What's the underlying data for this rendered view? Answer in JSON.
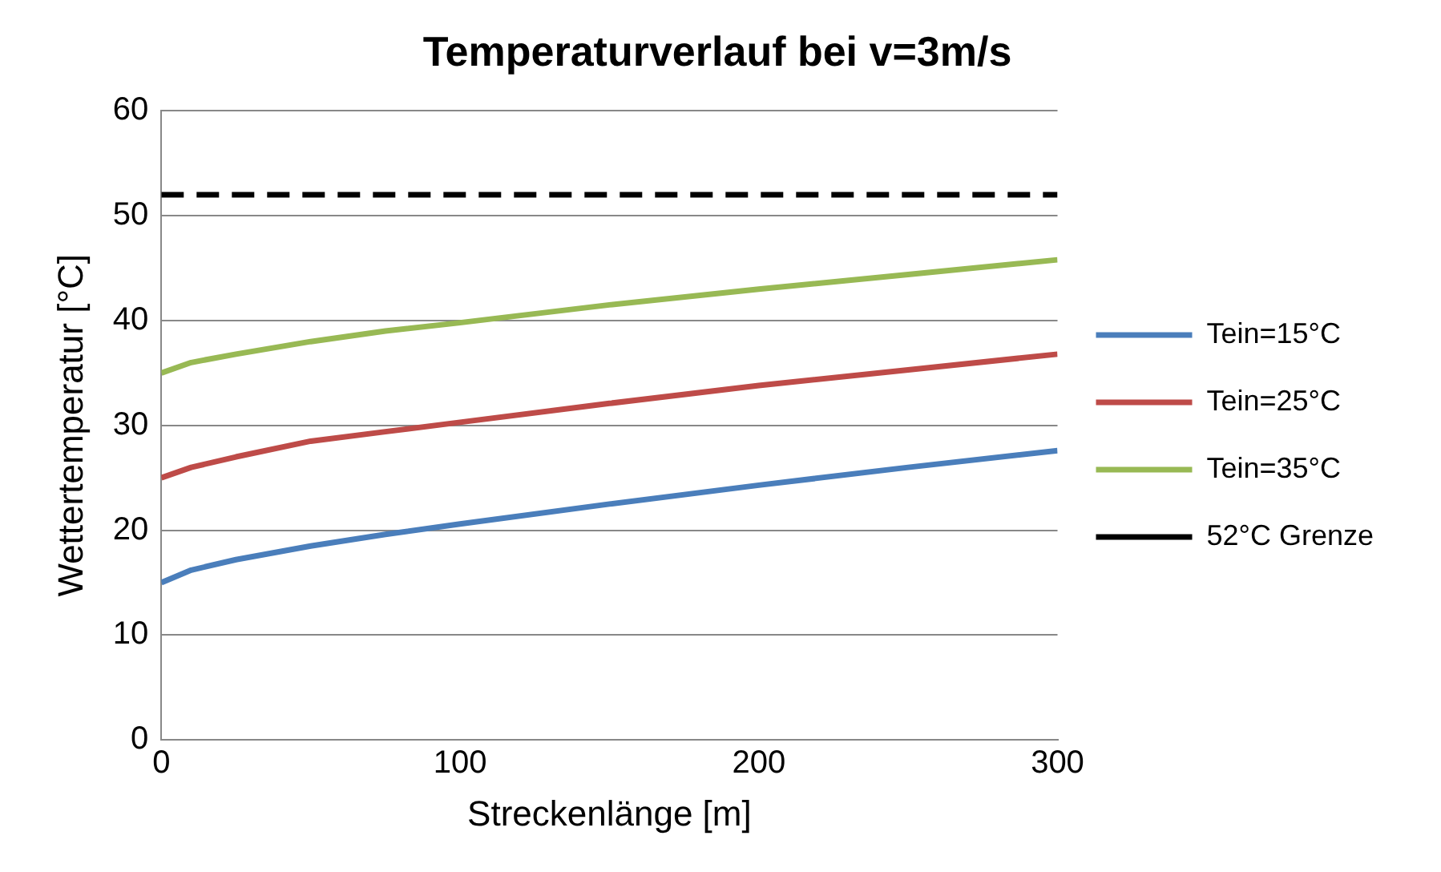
{
  "chart_data": {
    "type": "line",
    "title": "Temperaturverlauf bei v=3m/s",
    "xlabel": "Streckenlänge [m]",
    "ylabel": "Wettertemperatur [°C]",
    "x": [
      0,
      10,
      25,
      50,
      75,
      100,
      150,
      200,
      250,
      300
    ],
    "series": [
      {
        "name": "Tein=15°C",
        "color": "#4a7ebb",
        "values": [
          15,
          16.2,
          17.2,
          18.5,
          19.6,
          20.6,
          22.5,
          24.3,
          26,
          27.6
        ]
      },
      {
        "name": "Tein=25°C",
        "color": "#be4b48",
        "values": [
          25,
          26,
          27,
          28.5,
          29.4,
          30.3,
          32.1,
          33.8,
          35.3,
          36.8
        ]
      },
      {
        "name": "Tein=35°C",
        "color": "#98b954",
        "values": [
          35,
          36,
          36.8,
          38,
          39,
          39.8,
          41.5,
          43,
          44.4,
          45.8
        ]
      },
      {
        "name": "52°C Grenze",
        "color": "#000000",
        "x": [
          0,
          300
        ],
        "values": [
          52,
          52
        ],
        "line_style": "dashed"
      }
    ],
    "xlim": [
      0,
      300
    ],
    "xticks": [
      0,
      100,
      200,
      300
    ],
    "ylim": [
      0,
      60
    ],
    "yticks": [
      0,
      10,
      20,
      30,
      40,
      50,
      60
    ],
    "grid": "y",
    "legend": "right",
    "marker": "none",
    "line_style": "solid"
  }
}
